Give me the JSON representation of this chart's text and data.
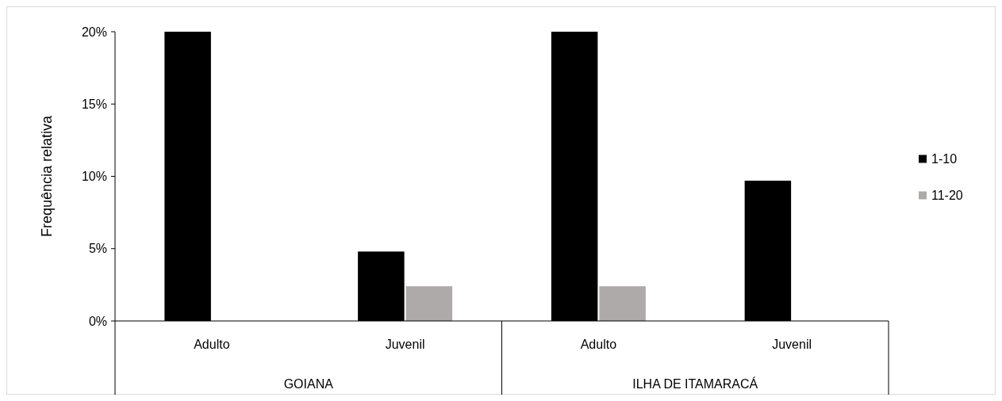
{
  "chart_data": {
    "type": "bar",
    "ylabel": "Frequência relativa",
    "categories": [
      "Adulto",
      "Juvenil",
      "Adulto",
      "Juvenil"
    ],
    "series": [
      {
        "name": "1-10",
        "color": "#000000",
        "values": [
          20,
          4.8,
          20,
          9.7
        ]
      },
      {
        "name": "11-20",
        "color": "#aeaaaa",
        "values": [
          0,
          2.4,
          2.4,
          0
        ]
      }
    ],
    "ylim": [
      0,
      20
    ],
    "yticks": [
      {
        "value": 0,
        "label": "0%"
      },
      {
        "value": 5,
        "label": "5%"
      },
      {
        "value": 10,
        "label": "10%"
      },
      {
        "value": 15,
        "label": "15%"
      },
      {
        "value": 20,
        "label": "20%"
      }
    ],
    "annotations": [
      "GOIANA",
      "ILHA DE ITAMARACÁ"
    ],
    "legend": "right",
    "grid": false
  }
}
